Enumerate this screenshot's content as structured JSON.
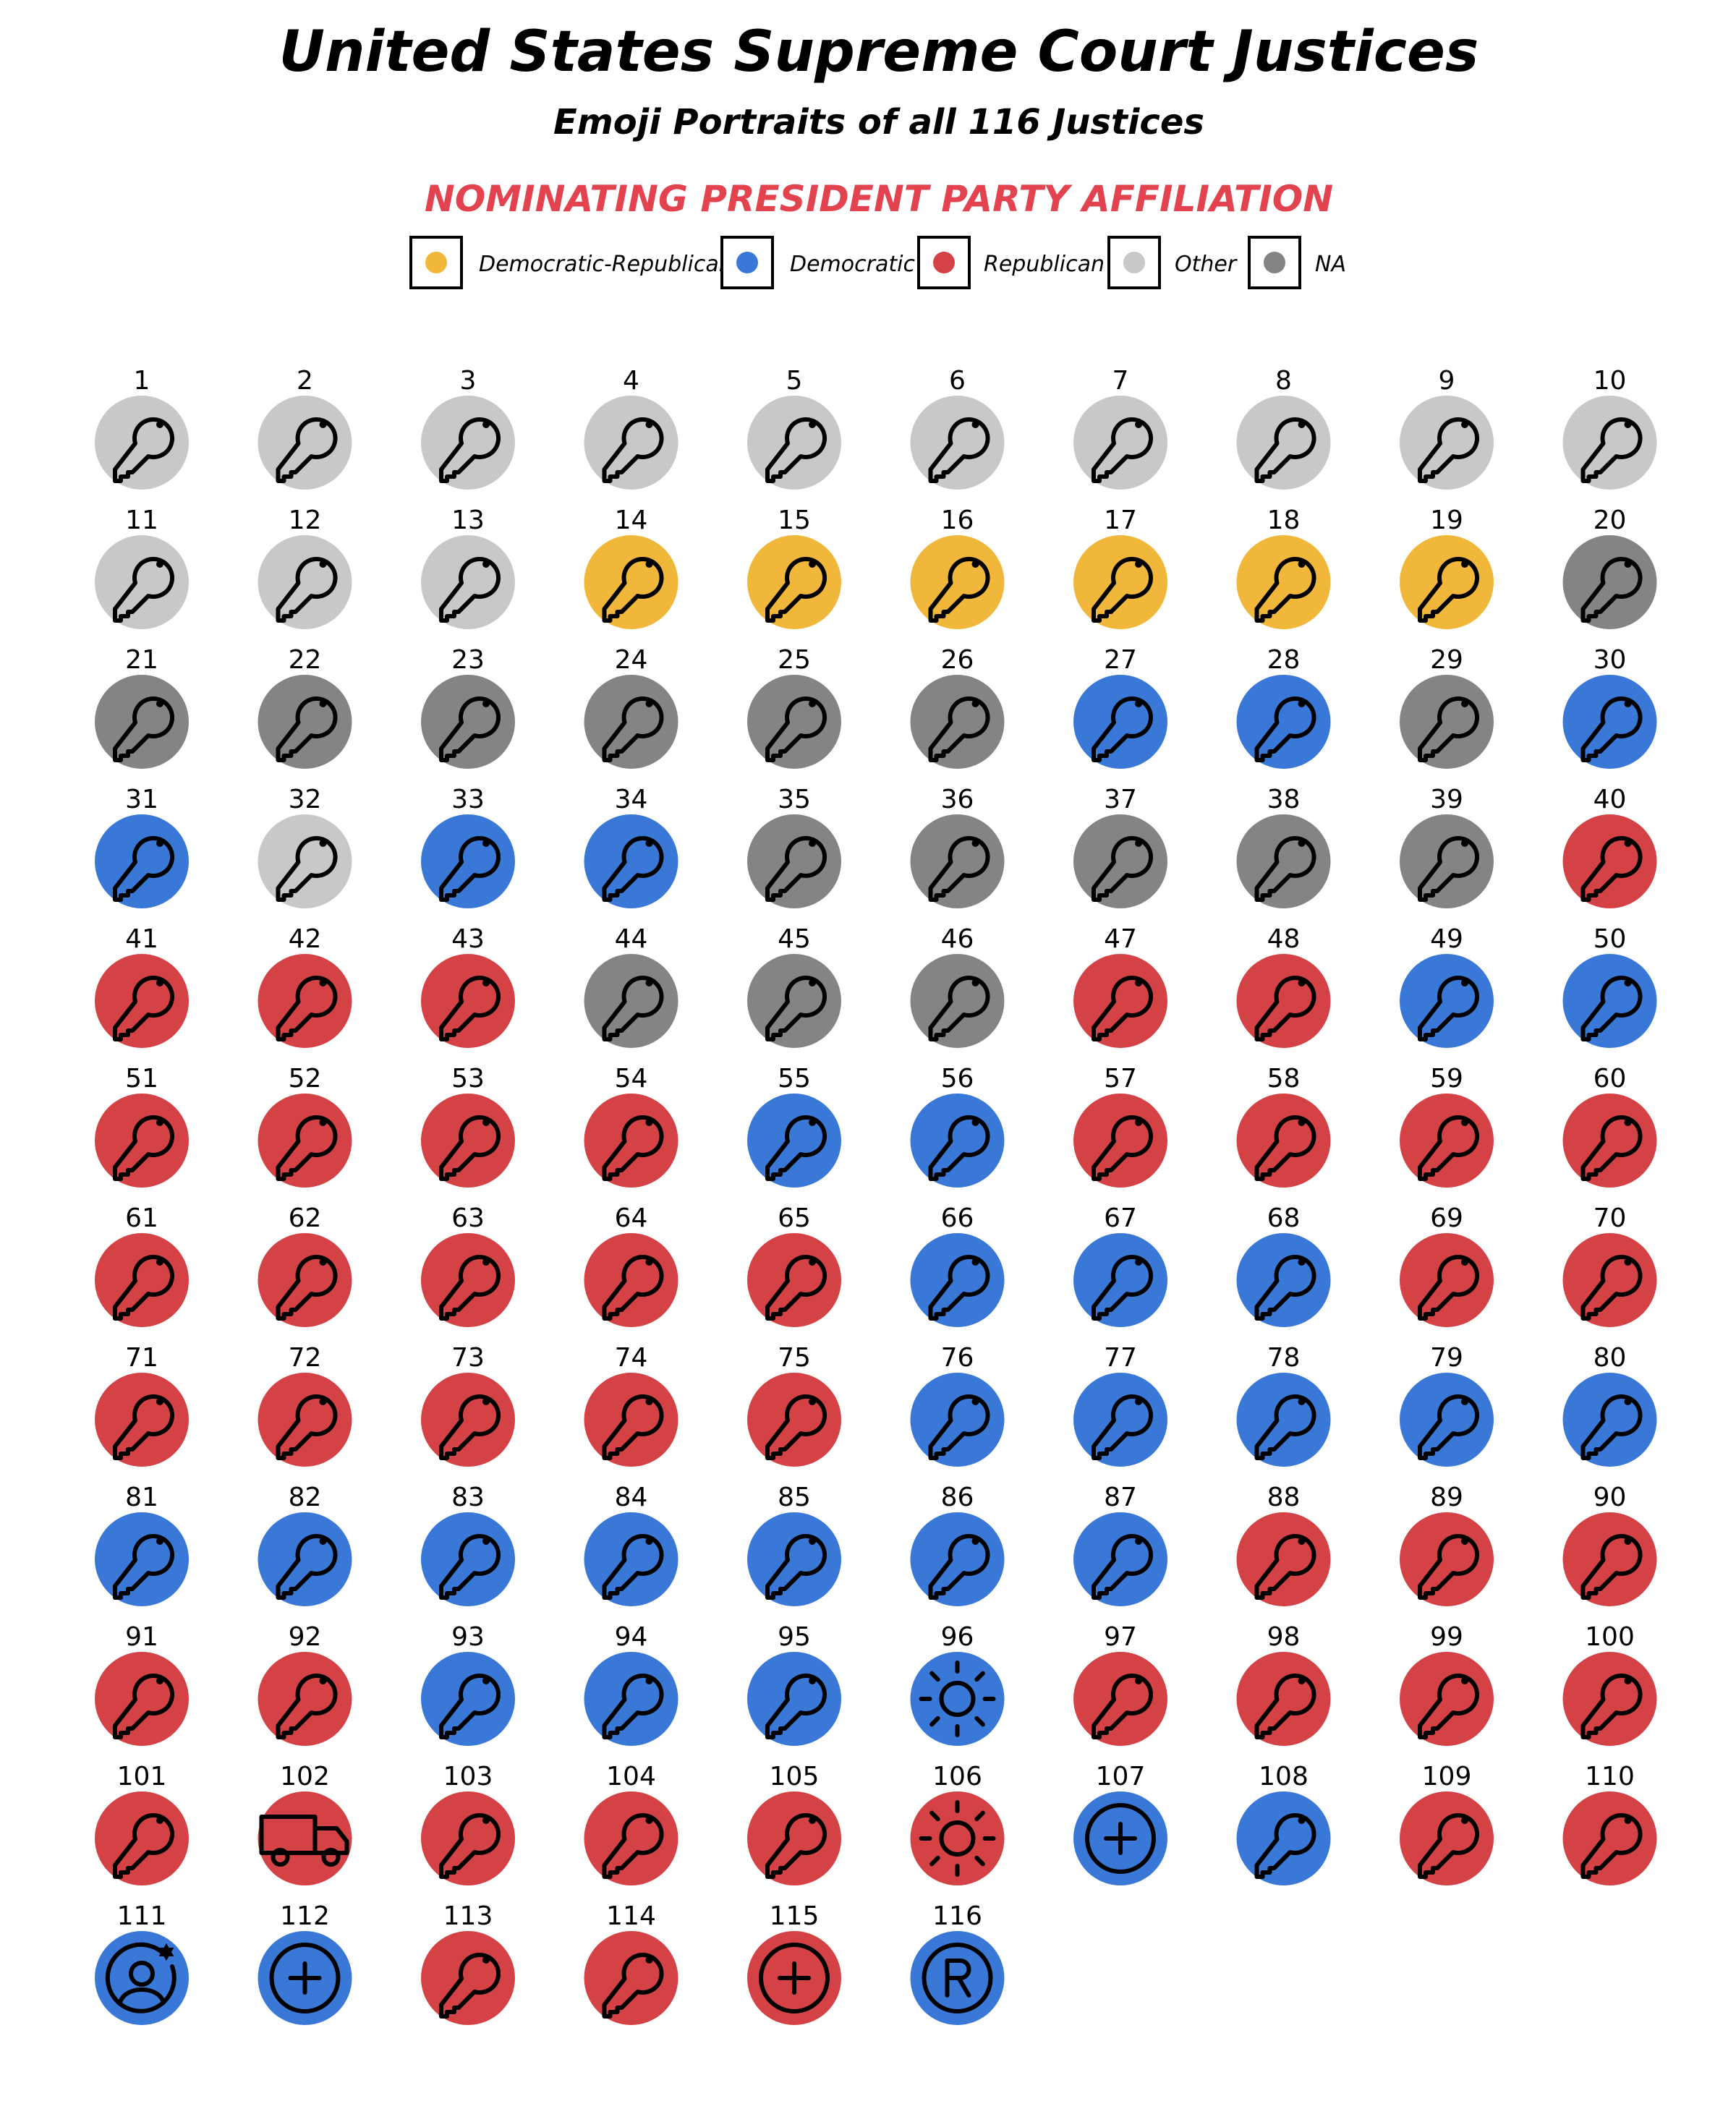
{
  "chart_data": {
    "type": "scatter",
    "title": "United States Supreme Court Justices",
    "subtitle": "Emoji Portraits of all 116 Justices",
    "legend_title": "NOMINATING PRESIDENT PARTY AFFILIATION",
    "legend_placement": "top-center",
    "grid": false,
    "legend": [
      {
        "key": "DR",
        "label": "Democratic-Republican",
        "color": "#f0b73a"
      },
      {
        "key": "D",
        "label": "Democratic",
        "color": "#3a78d8"
      },
      {
        "key": "R",
        "label": "Republican",
        "color": "#d54245"
      },
      {
        "key": "O",
        "label": "Other",
        "color": "#c8c8c8"
      },
      {
        "key": "NA",
        "label": "NA",
        "color": "#848484"
      }
    ],
    "justices": [
      {
        "n": 1,
        "party": "O",
        "icon": "key"
      },
      {
        "n": 2,
        "party": "O",
        "icon": "key"
      },
      {
        "n": 3,
        "party": "O",
        "icon": "key"
      },
      {
        "n": 4,
        "party": "O",
        "icon": "key"
      },
      {
        "n": 5,
        "party": "O",
        "icon": "key"
      },
      {
        "n": 6,
        "party": "O",
        "icon": "key"
      },
      {
        "n": 7,
        "party": "O",
        "icon": "key"
      },
      {
        "n": 8,
        "party": "O",
        "icon": "key"
      },
      {
        "n": 9,
        "party": "O",
        "icon": "key"
      },
      {
        "n": 10,
        "party": "O",
        "icon": "key"
      },
      {
        "n": 11,
        "party": "O",
        "icon": "key"
      },
      {
        "n": 12,
        "party": "O",
        "icon": "key"
      },
      {
        "n": 13,
        "party": "O",
        "icon": "key"
      },
      {
        "n": 14,
        "party": "DR",
        "icon": "key"
      },
      {
        "n": 15,
        "party": "DR",
        "icon": "key"
      },
      {
        "n": 16,
        "party": "DR",
        "icon": "key"
      },
      {
        "n": 17,
        "party": "DR",
        "icon": "key"
      },
      {
        "n": 18,
        "party": "DR",
        "icon": "key"
      },
      {
        "n": 19,
        "party": "DR",
        "icon": "key"
      },
      {
        "n": 20,
        "party": "NA",
        "icon": "key"
      },
      {
        "n": 21,
        "party": "NA",
        "icon": "key"
      },
      {
        "n": 22,
        "party": "NA",
        "icon": "key"
      },
      {
        "n": 23,
        "party": "NA",
        "icon": "key"
      },
      {
        "n": 24,
        "party": "NA",
        "icon": "key"
      },
      {
        "n": 25,
        "party": "NA",
        "icon": "key"
      },
      {
        "n": 26,
        "party": "NA",
        "icon": "key"
      },
      {
        "n": 27,
        "party": "D",
        "icon": "key"
      },
      {
        "n": 28,
        "party": "D",
        "icon": "key"
      },
      {
        "n": 29,
        "party": "NA",
        "icon": "key"
      },
      {
        "n": 30,
        "party": "D",
        "icon": "key"
      },
      {
        "n": 31,
        "party": "D",
        "icon": "key"
      },
      {
        "n": 32,
        "party": "O",
        "icon": "key"
      },
      {
        "n": 33,
        "party": "D",
        "icon": "key"
      },
      {
        "n": 34,
        "party": "D",
        "icon": "key"
      },
      {
        "n": 35,
        "party": "NA",
        "icon": "key"
      },
      {
        "n": 36,
        "party": "NA",
        "icon": "key"
      },
      {
        "n": 37,
        "party": "NA",
        "icon": "key"
      },
      {
        "n": 38,
        "party": "NA",
        "icon": "key"
      },
      {
        "n": 39,
        "party": "NA",
        "icon": "key"
      },
      {
        "n": 40,
        "party": "R",
        "icon": "key"
      },
      {
        "n": 41,
        "party": "R",
        "icon": "key"
      },
      {
        "n": 42,
        "party": "R",
        "icon": "key"
      },
      {
        "n": 43,
        "party": "R",
        "icon": "key"
      },
      {
        "n": 44,
        "party": "NA",
        "icon": "key"
      },
      {
        "n": 45,
        "party": "NA",
        "icon": "key"
      },
      {
        "n": 46,
        "party": "NA",
        "icon": "key"
      },
      {
        "n": 47,
        "party": "R",
        "icon": "key"
      },
      {
        "n": 48,
        "party": "R",
        "icon": "key"
      },
      {
        "n": 49,
        "party": "D",
        "icon": "key"
      },
      {
        "n": 50,
        "party": "D",
        "icon": "key"
      },
      {
        "n": 51,
        "party": "R",
        "icon": "key"
      },
      {
        "n": 52,
        "party": "R",
        "icon": "key"
      },
      {
        "n": 53,
        "party": "R",
        "icon": "key"
      },
      {
        "n": 54,
        "party": "R",
        "icon": "key"
      },
      {
        "n": 55,
        "party": "D",
        "icon": "key"
      },
      {
        "n": 56,
        "party": "D",
        "icon": "key"
      },
      {
        "n": 57,
        "party": "R",
        "icon": "key"
      },
      {
        "n": 58,
        "party": "R",
        "icon": "key"
      },
      {
        "n": 59,
        "party": "R",
        "icon": "key"
      },
      {
        "n": 60,
        "party": "R",
        "icon": "key"
      },
      {
        "n": 61,
        "party": "R",
        "icon": "key"
      },
      {
        "n": 62,
        "party": "R",
        "icon": "key"
      },
      {
        "n": 63,
        "party": "R",
        "icon": "key"
      },
      {
        "n": 64,
        "party": "R",
        "icon": "key"
      },
      {
        "n": 65,
        "party": "R",
        "icon": "key"
      },
      {
        "n": 66,
        "party": "D",
        "icon": "key"
      },
      {
        "n": 67,
        "party": "D",
        "icon": "key"
      },
      {
        "n": 68,
        "party": "D",
        "icon": "key"
      },
      {
        "n": 69,
        "party": "R",
        "icon": "key"
      },
      {
        "n": 70,
        "party": "R",
        "icon": "key"
      },
      {
        "n": 71,
        "party": "R",
        "icon": "key"
      },
      {
        "n": 72,
        "party": "R",
        "icon": "key"
      },
      {
        "n": 73,
        "party": "R",
        "icon": "key"
      },
      {
        "n": 74,
        "party": "R",
        "icon": "key"
      },
      {
        "n": 75,
        "party": "R",
        "icon": "key"
      },
      {
        "n": 76,
        "party": "D",
        "icon": "key"
      },
      {
        "n": 77,
        "party": "D",
        "icon": "key"
      },
      {
        "n": 78,
        "party": "D",
        "icon": "key"
      },
      {
        "n": 79,
        "party": "D",
        "icon": "key"
      },
      {
        "n": 80,
        "party": "D",
        "icon": "key"
      },
      {
        "n": 81,
        "party": "D",
        "icon": "key"
      },
      {
        "n": 82,
        "party": "D",
        "icon": "key"
      },
      {
        "n": 83,
        "party": "D",
        "icon": "key"
      },
      {
        "n": 84,
        "party": "D",
        "icon": "key"
      },
      {
        "n": 85,
        "party": "D",
        "icon": "key"
      },
      {
        "n": 86,
        "party": "D",
        "icon": "key"
      },
      {
        "n": 87,
        "party": "D",
        "icon": "key"
      },
      {
        "n": 88,
        "party": "R",
        "icon": "key"
      },
      {
        "n": 89,
        "party": "R",
        "icon": "key"
      },
      {
        "n": 90,
        "party": "R",
        "icon": "key"
      },
      {
        "n": 91,
        "party": "R",
        "icon": "key"
      },
      {
        "n": 92,
        "party": "R",
        "icon": "key"
      },
      {
        "n": 93,
        "party": "D",
        "icon": "key"
      },
      {
        "n": 94,
        "party": "D",
        "icon": "key"
      },
      {
        "n": 95,
        "party": "D",
        "icon": "key"
      },
      {
        "n": 96,
        "party": "D",
        "icon": "sun"
      },
      {
        "n": 97,
        "party": "R",
        "icon": "key"
      },
      {
        "n": 98,
        "party": "R",
        "icon": "key"
      },
      {
        "n": 99,
        "party": "R",
        "icon": "key"
      },
      {
        "n": 100,
        "party": "R",
        "icon": "key"
      },
      {
        "n": 101,
        "party": "R",
        "icon": "key"
      },
      {
        "n": 102,
        "party": "R",
        "icon": "truck"
      },
      {
        "n": 103,
        "party": "R",
        "icon": "key"
      },
      {
        "n": 104,
        "party": "R",
        "icon": "key"
      },
      {
        "n": 105,
        "party": "R",
        "icon": "key"
      },
      {
        "n": 106,
        "party": "R",
        "icon": "sun"
      },
      {
        "n": 107,
        "party": "D",
        "icon": "plus"
      },
      {
        "n": 108,
        "party": "D",
        "icon": "key"
      },
      {
        "n": 109,
        "party": "R",
        "icon": "key"
      },
      {
        "n": 110,
        "party": "R",
        "icon": "key"
      },
      {
        "n": 111,
        "party": "D",
        "icon": "person-star"
      },
      {
        "n": 112,
        "party": "D",
        "icon": "plus"
      },
      {
        "n": 113,
        "party": "R",
        "icon": "key"
      },
      {
        "n": 114,
        "party": "R",
        "icon": "key"
      },
      {
        "n": 115,
        "party": "R",
        "icon": "plus"
      },
      {
        "n": 116,
        "party": "D",
        "icon": "registered"
      }
    ]
  }
}
